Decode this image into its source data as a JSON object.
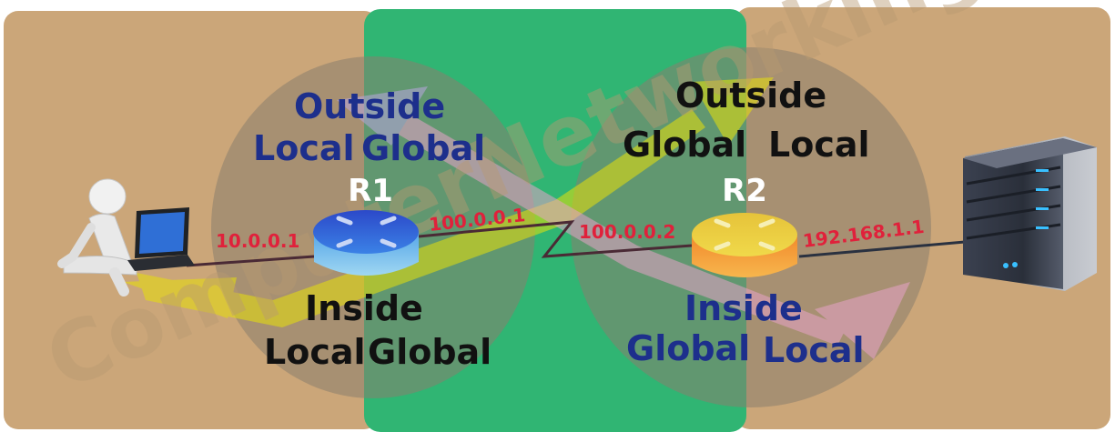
{
  "routers": {
    "r1": {
      "name": "R1"
    },
    "r2": {
      "name": "R2"
    }
  },
  "addresses": {
    "pc": "10.0.0.1",
    "r1_outside": "100.0.0.1",
    "r2_outside": "100.0.0.2",
    "server": "192.168.1.1"
  },
  "labels": {
    "r1_top_line1": "Outside",
    "r1_top_line2a": "Local",
    "r1_top_line2b": "Global",
    "r1_bottom_line1": "Inside",
    "r1_bottom_line2a": "Local",
    "r1_bottom_line2b": "Global",
    "r2_top_line1": "Outside",
    "r2_top_line2a": "Global",
    "r2_top_line2b": "Local",
    "r2_bottom_line1": "Inside",
    "r2_bottom_line2a": "Global",
    "r2_bottom_line2b": "Local"
  },
  "watermark": "ComputerNetworkingNotes.com",
  "colors": {
    "tan": "#cba679",
    "green": "#30b573",
    "circle": "#8a7d6e",
    "ip_red": "#e0213b",
    "navy": "#1d2f8c",
    "black": "#111111",
    "r1_blue": "#2a5fd3",
    "r2_orange": "#f2a02a"
  }
}
